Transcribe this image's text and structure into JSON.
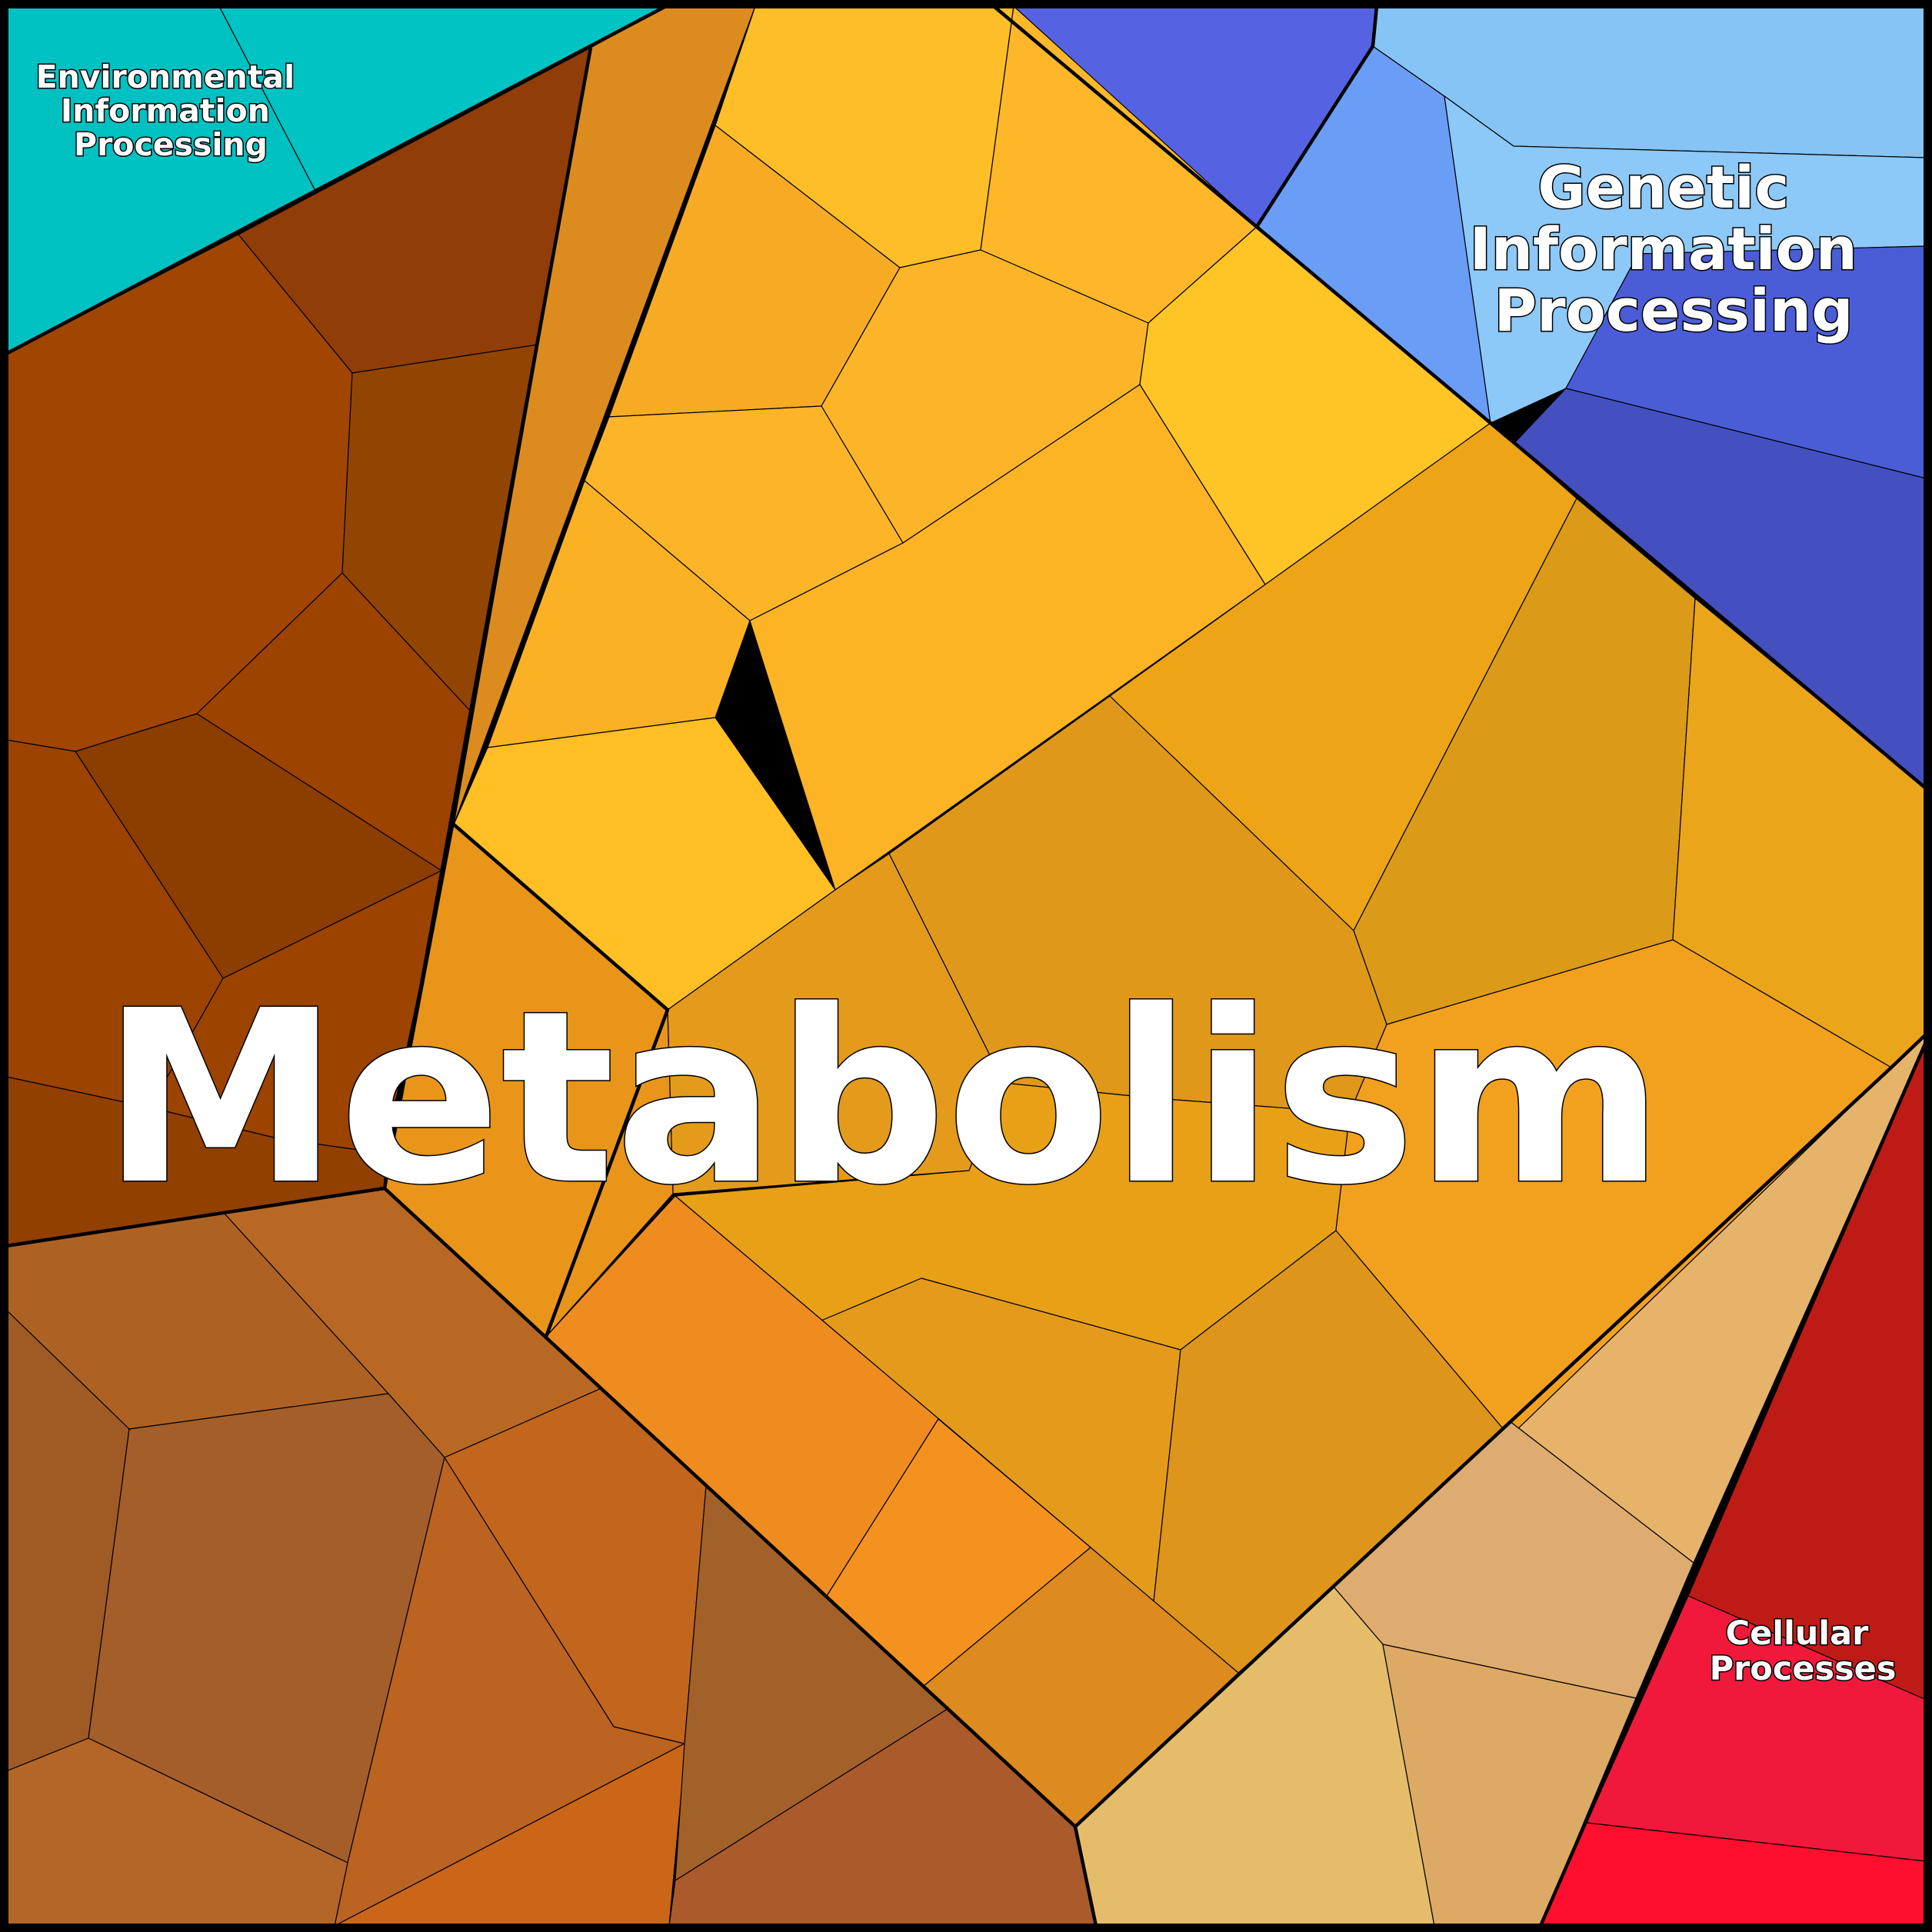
{
  "diagram": {
    "type": "voronoi-treemap",
    "border_color": "#000000",
    "categories": [
      {
        "key": "environmental",
        "label_lines": [
          "Environmental",
          "Information",
          "Processing"
        ],
        "color": "#00C1C1"
      },
      {
        "key": "genetic",
        "label_lines": [
          "Genetic",
          "Information",
          "Processing"
        ],
        "colors": [
          "#5563E3",
          "#6A9DF6",
          "#85C4F4",
          "#4B5DD6",
          "#4450BF"
        ]
      },
      {
        "key": "metabolism",
        "label_lines": [
          "Metabolism"
        ],
        "colors": [
          "#FFC125",
          "#F7AB25",
          "#EDA417",
          "#DB9A18",
          "#E0981A",
          "#EE8C1F",
          "#F4921F",
          "#DD8A1F",
          "#E8951A",
          "#9C4300",
          "#8C3D00",
          "#B0621F",
          "#A35E2A",
          "#C2661E",
          "#CB6618",
          "#AA5A2B",
          "#E6B76C",
          "#DEAC70",
          "#E5BD6A"
        ]
      },
      {
        "key": "cellular",
        "label_lines": [
          "Cellular",
          "Processes"
        ],
        "colors": [
          "#BE1B16",
          "#F0193B",
          "#FF0F2E"
        ]
      }
    ]
  }
}
